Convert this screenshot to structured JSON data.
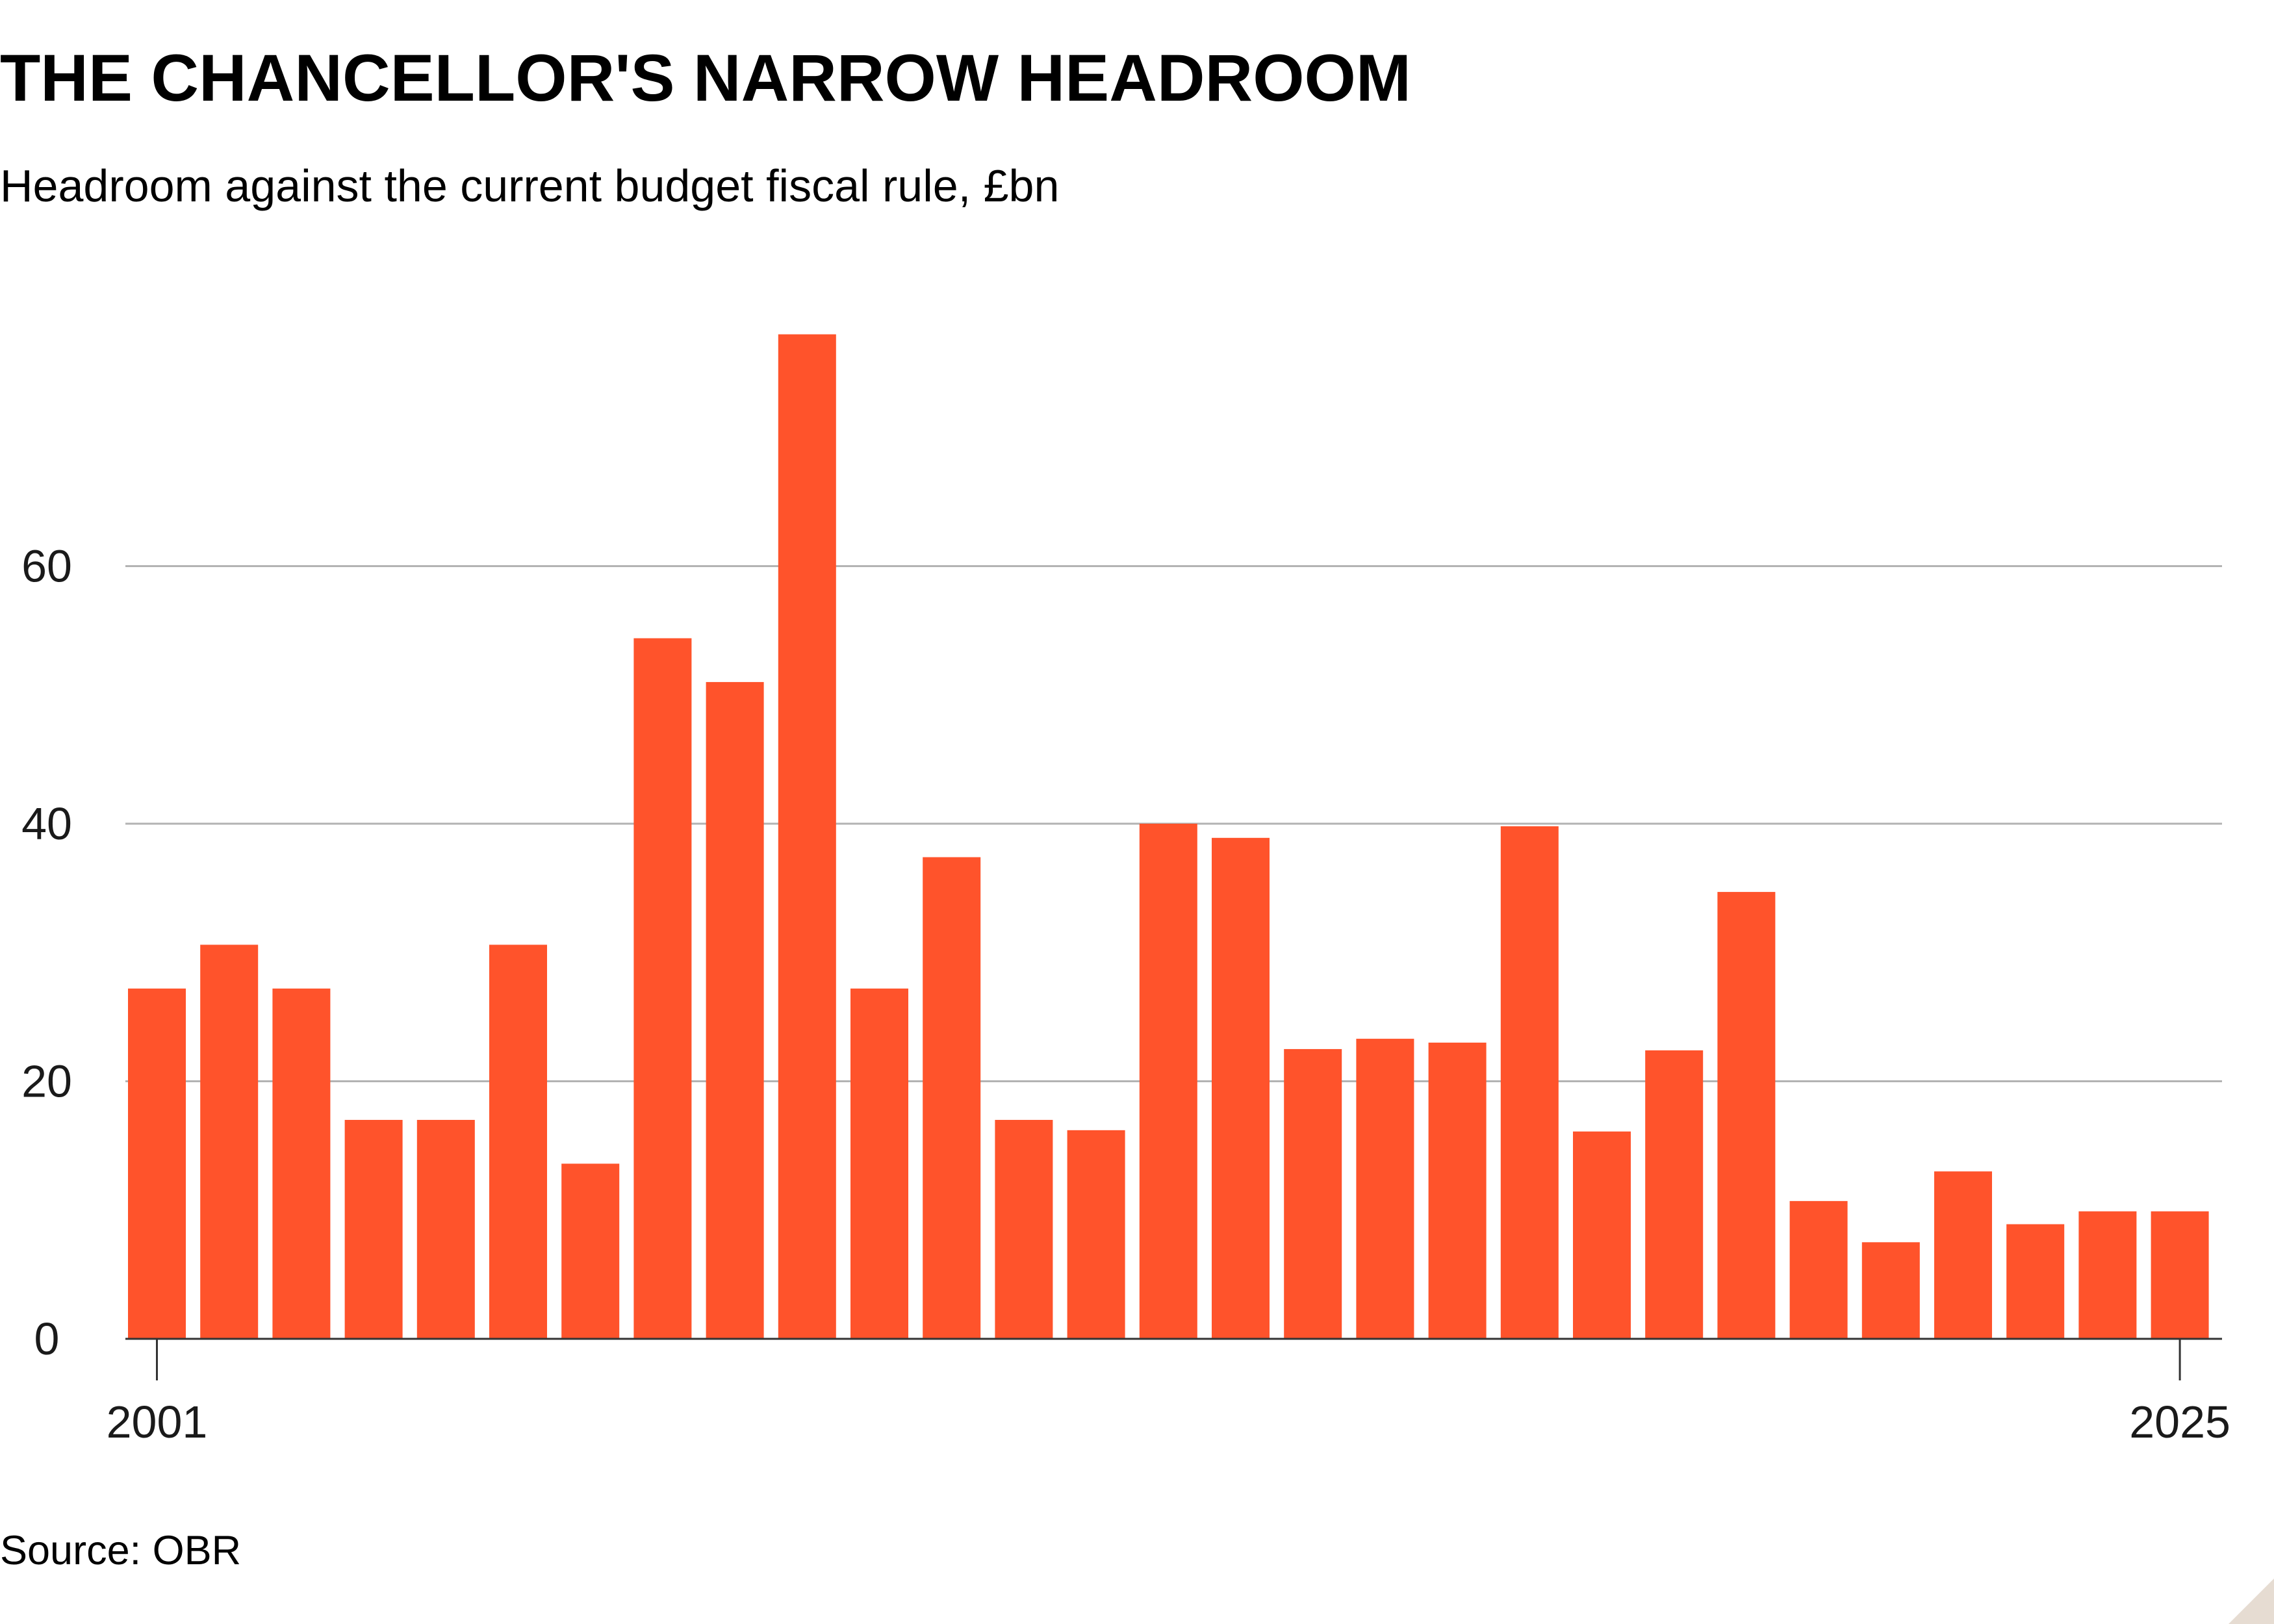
{
  "title": "THE CHANCELLOR'S NARROW HEADROOM",
  "subtitle": "Headroom against the current budget fiscal rule, £bn",
  "source": "Source: OBR",
  "colors": {
    "bar": "#ff532b",
    "grid": "#b3b3b3",
    "axis": "#333333",
    "corner": "#e6dcd2"
  },
  "chart_data": {
    "type": "bar",
    "title": "",
    "xlabel": "",
    "ylabel": "",
    "ylim": [
      0,
      80
    ],
    "y_ticks": [
      0,
      20,
      40,
      60
    ],
    "x_tick_labels": [
      {
        "index": 0,
        "label": "2001"
      },
      {
        "index": 28,
        "label": "2025"
      }
    ],
    "grid": true,
    "legend": "none",
    "values": [
      27.2,
      30.6,
      27.2,
      17.0,
      17.0,
      30.6,
      13.6,
      54.4,
      51.0,
      78.0,
      27.2,
      37.4,
      17.0,
      16.2,
      40.0,
      38.9,
      22.5,
      23.3,
      23.0,
      39.8,
      16.1,
      22.4,
      34.7,
      10.7,
      7.5,
      13.0,
      8.9,
      9.9,
      9.9
    ]
  }
}
